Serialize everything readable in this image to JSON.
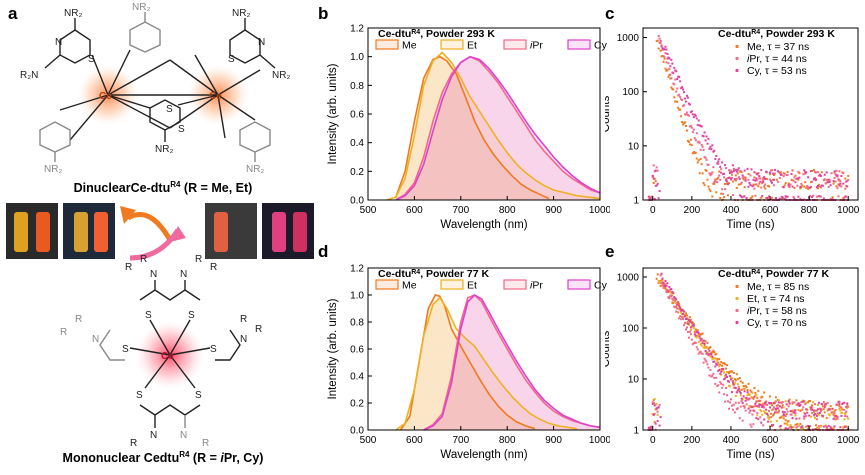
{
  "panel_a": {
    "letter": "a",
    "dinuclear_caption_parts": [
      "Dinuclear",
      "Ce-dtu",
      "R4",
      " (R = Me, Et)"
    ],
    "mononuclear_caption_parts": [
      "Mononuclear Cedtu",
      "R4",
      " (R = ",
      "i",
      "Pr, Cy)"
    ],
    "ce_label": "Ce",
    "n_label": "N",
    "s_label": "S",
    "nr2_label": "NR₂",
    "r2n_label": "R₂N",
    "r_label": "R",
    "vial_colors": [
      "#e0a020",
      "#e85a20",
      "#d8a030",
      "#f06030",
      "#e06040",
      "#e04080",
      "#d03060"
    ]
  },
  "chart_data": [
    {
      "panel": "b",
      "type": "line",
      "title_parts": [
        "Ce-dtu",
        "R4",
        ", Powder 293 K"
      ],
      "xlabel": "Wavelength (nm)",
      "ylabel": "Intensity (arb. units)",
      "xlim": [
        500,
        1000
      ],
      "ylim": [
        0,
        1.2
      ],
      "xticks": [
        500,
        600,
        700,
        800,
        900,
        1000
      ],
      "yticks": [
        "0.0",
        "0.2",
        "0.4",
        "0.6",
        "0.8",
        "1.0",
        "1.2"
      ],
      "legend": [
        "Me",
        "Et",
        "iPr",
        "Cy"
      ],
      "series": [
        {
          "name": "Me",
          "color": "#f07a20",
          "x": [
            560,
            580,
            600,
            620,
            640,
            655,
            670,
            690,
            710,
            730,
            750,
            770,
            790,
            810,
            830,
            850,
            870,
            890
          ],
          "y": [
            0.02,
            0.2,
            0.55,
            0.85,
            0.98,
            1.0,
            0.97,
            0.88,
            0.72,
            0.55,
            0.42,
            0.32,
            0.24,
            0.17,
            0.11,
            0.07,
            0.04,
            0.01
          ]
        },
        {
          "name": "Et",
          "color": "#f0b020",
          "x": [
            540,
            560,
            580,
            600,
            620,
            640,
            660,
            680,
            700,
            720,
            740,
            760,
            780,
            800,
            820,
            840,
            860,
            880,
            900,
            950,
            1000
          ],
          "y": [
            0.0,
            0.02,
            0.15,
            0.45,
            0.8,
            0.97,
            1.03,
            0.96,
            0.85,
            0.72,
            0.62,
            0.52,
            0.42,
            0.33,
            0.25,
            0.19,
            0.14,
            0.1,
            0.07,
            0.03,
            0.01
          ]
        },
        {
          "name": "iPr",
          "color": "#f06a8a",
          "x": [
            560,
            580,
            600,
            620,
            640,
            660,
            680,
            700,
            720,
            740,
            760,
            780,
            800,
            820,
            840,
            860,
            880,
            900,
            920,
            940,
            960,
            980,
            1000
          ],
          "y": [
            0.0,
            0.04,
            0.12,
            0.3,
            0.55,
            0.75,
            0.88,
            0.96,
            1.0,
            0.97,
            0.9,
            0.82,
            0.72,
            0.62,
            0.52,
            0.42,
            0.34,
            0.27,
            0.2,
            0.15,
            0.11,
            0.07,
            0.05
          ]
        },
        {
          "name": "Cy",
          "color": "#e040d0",
          "x": [
            560,
            580,
            600,
            620,
            640,
            660,
            680,
            700,
            720,
            740,
            760,
            780,
            800,
            820,
            840,
            860,
            880,
            900,
            920,
            940,
            960,
            980,
            1000
          ],
          "y": [
            0.0,
            0.03,
            0.1,
            0.25,
            0.48,
            0.7,
            0.86,
            0.96,
            1.0,
            0.98,
            0.92,
            0.84,
            0.75,
            0.65,
            0.55,
            0.46,
            0.38,
            0.3,
            0.23,
            0.17,
            0.12,
            0.08,
            0.05
          ]
        }
      ]
    },
    {
      "panel": "c",
      "type": "scatter",
      "title_parts": [
        "Ce-dtu",
        "R4",
        ", Powder 293 K"
      ],
      "xlabel": "Time (ns)",
      "ylabel": "Counts",
      "xlim": [
        -50,
        1050
      ],
      "ylim": [
        1,
        1500
      ],
      "yscale": "log",
      "xticks": [
        0,
        200,
        400,
        600,
        800,
        1000
      ],
      "yticks": [
        "1",
        "10",
        "100",
        "1000"
      ],
      "legend": [
        {
          "prefix": "Me,",
          "italic_prefix": "",
          "text": "Me,  τ = 37 ns",
          "color": "#f07a20"
        },
        {
          "prefix": "",
          "italic_prefix": "i",
          "text": "Pr,  τ = 44 ns",
          "color": "#f06a8a"
        },
        {
          "prefix": "Cy,",
          "italic_prefix": "",
          "text": "Cy,  τ = 53 ns",
          "color": "#e040a0"
        }
      ],
      "series": [
        {
          "name": "Me",
          "tau": 37,
          "color": "#f07a20"
        },
        {
          "name": "iPr",
          "tau": 44,
          "color": "#f06a8a"
        },
        {
          "name": "Cy",
          "tau": 53,
          "color": "#e040a0"
        }
      ]
    },
    {
      "panel": "d",
      "type": "line",
      "title_parts": [
        "Ce-dtu",
        "R4",
        ", Powder 77 K"
      ],
      "xlabel": "Wavelength (nm)",
      "ylabel": "Intensity (arb. units)",
      "xlim": [
        500,
        1000
      ],
      "ylim": [
        0,
        1.2
      ],
      "xticks": [
        500,
        600,
        700,
        800,
        900,
        1000
      ],
      "yticks": [
        "0.0",
        "0.2",
        "0.4",
        "0.6",
        "0.8",
        "1.0",
        "1.2"
      ],
      "legend": [
        "Me",
        "Et",
        "iPr",
        "Cy"
      ],
      "series": [
        {
          "name": "Me",
          "color": "#f07a20",
          "x": [
            570,
            590,
            610,
            630,
            645,
            655,
            665,
            680,
            700,
            720,
            740,
            760,
            780,
            800,
            820,
            840,
            860
          ],
          "y": [
            0.0,
            0.1,
            0.5,
            0.9,
            1.0,
            0.99,
            0.92,
            0.75,
            0.62,
            0.5,
            0.38,
            0.27,
            0.18,
            0.11,
            0.06,
            0.03,
            0.01
          ]
        },
        {
          "name": "Et",
          "color": "#f0b020",
          "x": [
            560,
            580,
            600,
            620,
            640,
            655,
            670,
            690,
            710,
            730,
            750,
            770,
            790,
            810,
            830,
            850,
            870,
            890,
            910,
            930,
            950
          ],
          "y": [
            0.0,
            0.05,
            0.3,
            0.7,
            0.93,
            0.98,
            0.9,
            0.75,
            0.68,
            0.62,
            0.52,
            0.42,
            0.33,
            0.25,
            0.18,
            0.12,
            0.08,
            0.05,
            0.03,
            0.02,
            0.01
          ]
        },
        {
          "name": "iPr",
          "color": "#f06a8a",
          "x": [
            620,
            640,
            660,
            680,
            700,
            715,
            730,
            745,
            760,
            780,
            800,
            820,
            840,
            860,
            880,
            900,
            920,
            940,
            960,
            980,
            1000
          ],
          "y": [
            0.0,
            0.04,
            0.12,
            0.4,
            0.8,
            0.98,
            1.0,
            0.95,
            0.85,
            0.72,
            0.6,
            0.48,
            0.37,
            0.28,
            0.2,
            0.14,
            0.1,
            0.07,
            0.05,
            0.03,
            0.02
          ]
        },
        {
          "name": "Cy",
          "color": "#e040d0",
          "x": [
            620,
            640,
            660,
            680,
            700,
            715,
            730,
            745,
            760,
            780,
            800,
            820,
            840,
            860,
            880,
            900,
            920,
            940,
            960,
            980,
            1000
          ],
          "y": [
            0.0,
            0.03,
            0.1,
            0.35,
            0.75,
            0.95,
            1.0,
            0.97,
            0.88,
            0.75,
            0.63,
            0.51,
            0.4,
            0.3,
            0.22,
            0.16,
            0.11,
            0.08,
            0.05,
            0.03,
            0.02
          ]
        }
      ]
    },
    {
      "panel": "e",
      "type": "scatter",
      "title_parts": [
        "Ce-dtu",
        "R4",
        ", Powder 77 K"
      ],
      "xlabel": "Time (ns)",
      "ylabel": "Counts",
      "xlim": [
        -50,
        1050
      ],
      "ylim": [
        1,
        1500
      ],
      "yscale": "log",
      "xticks": [
        0,
        200,
        400,
        600,
        800,
        1000
      ],
      "yticks": [
        "1",
        "10",
        "100",
        "1000"
      ],
      "legend": [
        {
          "italic_prefix": "",
          "text": "Me,  τ = 85 ns",
          "color": "#f07a20"
        },
        {
          "italic_prefix": "",
          "text": "Et,  τ = 74 ns",
          "color": "#f0b020"
        },
        {
          "italic_prefix": "i",
          "text": "Pr,  τ = 58 ns",
          "color": "#f06a8a"
        },
        {
          "italic_prefix": "",
          "text": "Cy,  τ = 70 ns",
          "color": "#e040a0"
        }
      ],
      "series": [
        {
          "name": "Me",
          "tau": 85,
          "color": "#f07a20"
        },
        {
          "name": "Et",
          "tau": 74,
          "color": "#f0b020"
        },
        {
          "name": "iPr",
          "tau": 58,
          "color": "#f06a8a"
        },
        {
          "name": "Cy",
          "tau": 70,
          "color": "#e040a0"
        }
      ]
    }
  ],
  "panel_letters": {
    "b": "b",
    "c": "c",
    "d": "d",
    "e": "e"
  }
}
